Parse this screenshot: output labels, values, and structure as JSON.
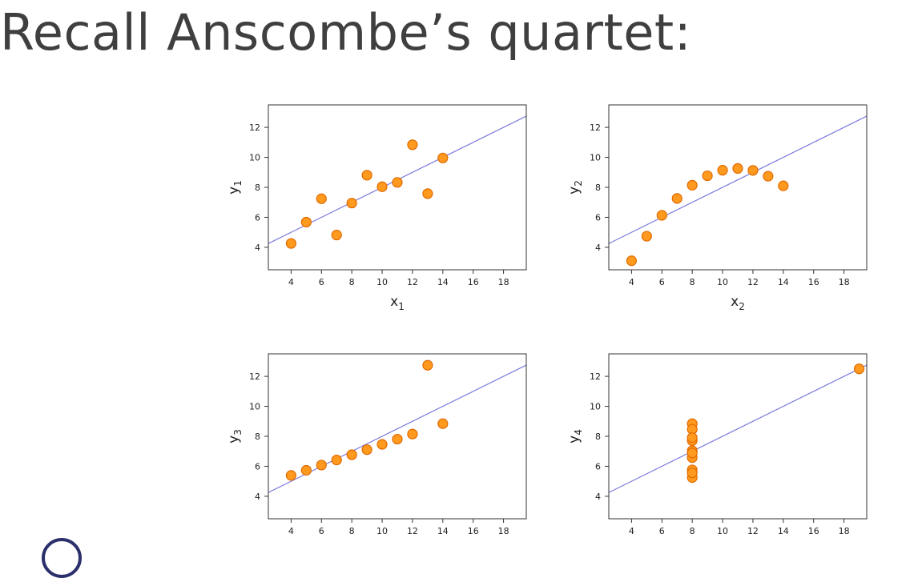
{
  "title": "Recall Anscombe’s quartet:",
  "colors": {
    "point_fill": "#ff9a1f",
    "point_stroke": "#e06a00",
    "fit_line": "#7b7bdd",
    "frame": "#333333",
    "title": "#3f3f3f",
    "logo": "#2b2f6b"
  },
  "chart_data": [
    {
      "type": "scatter",
      "xlabel": "x",
      "xlabel_sub": "1",
      "ylabel": "y",
      "ylabel_sub": "1",
      "xlim": [
        2.5,
        19.5
      ],
      "ylim": [
        2.5,
        13.5
      ],
      "xticks": [
        4,
        6,
        8,
        10,
        12,
        14,
        16,
        18
      ],
      "yticks": [
        4,
        6,
        8,
        10,
        12
      ],
      "fit_line": {
        "intercept": 3.0,
        "slope": 0.5
      },
      "x": [
        10,
        8,
        13,
        9,
        11,
        14,
        6,
        4,
        12,
        7,
        5
      ],
      "y": [
        8.04,
        6.95,
        7.58,
        8.81,
        8.33,
        9.96,
        7.24,
        4.26,
        10.84,
        4.82,
        5.68
      ]
    },
    {
      "type": "scatter",
      "xlabel": "x",
      "xlabel_sub": "2",
      "ylabel": "y",
      "ylabel_sub": "2",
      "xlim": [
        2.5,
        19.5
      ],
      "ylim": [
        2.5,
        13.5
      ],
      "xticks": [
        4,
        6,
        8,
        10,
        12,
        14,
        16,
        18
      ],
      "yticks": [
        4,
        6,
        8,
        10,
        12
      ],
      "fit_line": {
        "intercept": 3.0,
        "slope": 0.5
      },
      "x": [
        10,
        8,
        13,
        9,
        11,
        14,
        6,
        4,
        12,
        7,
        5
      ],
      "y": [
        9.14,
        8.14,
        8.74,
        8.77,
        9.26,
        8.1,
        6.13,
        3.1,
        9.13,
        7.26,
        4.74
      ]
    },
    {
      "type": "scatter",
      "xlabel": "",
      "xlabel_sub": "",
      "ylabel": "y",
      "ylabel_sub": "3",
      "xlim": [
        2.5,
        19.5
      ],
      "ylim": [
        2.5,
        13.5
      ],
      "xticks": [
        4,
        6,
        8,
        10,
        12,
        14,
        16,
        18
      ],
      "yticks": [
        4,
        6,
        8,
        10,
        12
      ],
      "fit_line": {
        "intercept": 3.0,
        "slope": 0.5
      },
      "x": [
        10,
        8,
        13,
        9,
        11,
        14,
        6,
        4,
        12,
        7,
        5
      ],
      "y": [
        7.46,
        6.77,
        12.74,
        7.11,
        7.81,
        8.84,
        6.08,
        5.39,
        8.15,
        6.42,
        5.73
      ]
    },
    {
      "type": "scatter",
      "xlabel": "",
      "xlabel_sub": "",
      "ylabel": "y",
      "ylabel_sub": "4",
      "xlim": [
        2.5,
        19.5
      ],
      "ylim": [
        2.5,
        13.5
      ],
      "xticks": [
        4,
        6,
        8,
        10,
        12,
        14,
        16,
        18
      ],
      "yticks": [
        4,
        6,
        8,
        10,
        12
      ],
      "fit_line": {
        "intercept": 3.0,
        "slope": 0.5
      },
      "x": [
        8,
        8,
        8,
        8,
        8,
        8,
        8,
        19,
        8,
        8,
        8
      ],
      "y": [
        6.58,
        5.76,
        7.71,
        8.84,
        8.47,
        7.04,
        5.25,
        12.5,
        5.56,
        7.91,
        6.89
      ]
    }
  ]
}
